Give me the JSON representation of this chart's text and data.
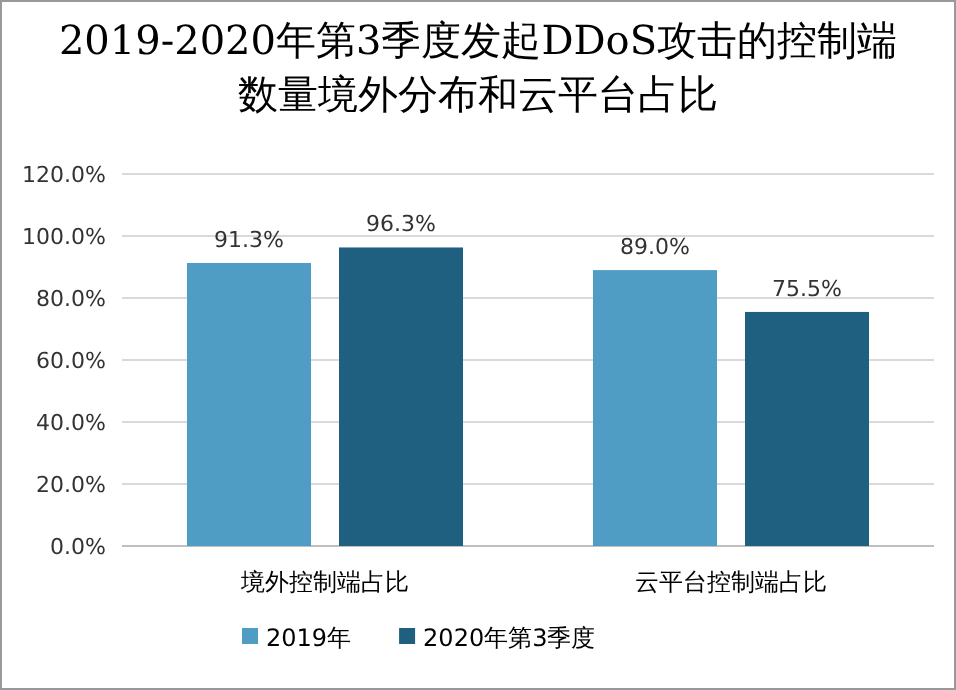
{
  "chart_data": {
    "type": "bar",
    "title": "2019-2020年第3季度发起DDoS攻击的控制端数量境外分布和云平台占比",
    "categories": [
      "境外控制端占比",
      "云平台控制端占比"
    ],
    "series": [
      {
        "name": "2019年",
        "color": "#4f9dc4",
        "values": [
          91.3,
          89.0
        ],
        "value_labels": [
          "91.3%",
          "89.0%"
        ]
      },
      {
        "name": "2020年第3季度",
        "color": "#1f5f80",
        "values": [
          96.3,
          75.5
        ],
        "value_labels": [
          "96.3%",
          "75.5%"
        ]
      }
    ],
    "ylim": [
      0,
      120
    ],
    "yticks": [
      {
        "value": 0,
        "label": "0.0%"
      },
      {
        "value": 20,
        "label": "20.0%"
      },
      {
        "value": 40,
        "label": "40.0%"
      },
      {
        "value": 60,
        "label": "60.0%"
      },
      {
        "value": 80,
        "label": "80.0%"
      },
      {
        "value": 100,
        "label": "100.0%"
      },
      {
        "value": 120,
        "label": "120.0%"
      }
    ],
    "grid": "y",
    "legend": "bottom"
  }
}
